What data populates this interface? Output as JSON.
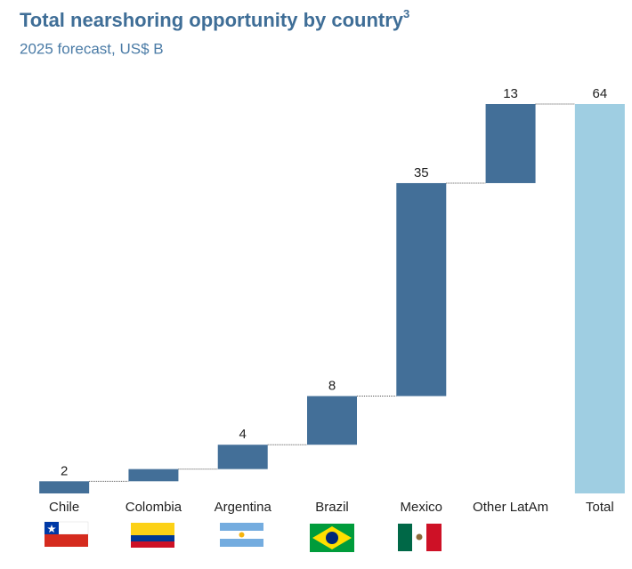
{
  "chart_data": {
    "type": "waterfall",
    "title": "Total nearshoring opportunity by country",
    "title_note": "3",
    "subtitle": "2025 forecast, US$ B",
    "categories": [
      "Chile",
      "Colombia",
      "Argentina",
      "Brazil",
      "Mexico",
      "Other LatAm",
      "Total"
    ],
    "values": [
      2,
      2,
      4,
      8,
      35,
      13,
      64
    ],
    "value_labels": [
      "2",
      null,
      "4",
      "8",
      "35",
      "13",
      "64"
    ],
    "kinds": [
      "step",
      "step",
      "step",
      "step",
      "step",
      "step",
      "total"
    ],
    "color": "#436f98",
    "total_color": "#9fcee2",
    "connectors": true
  }
}
